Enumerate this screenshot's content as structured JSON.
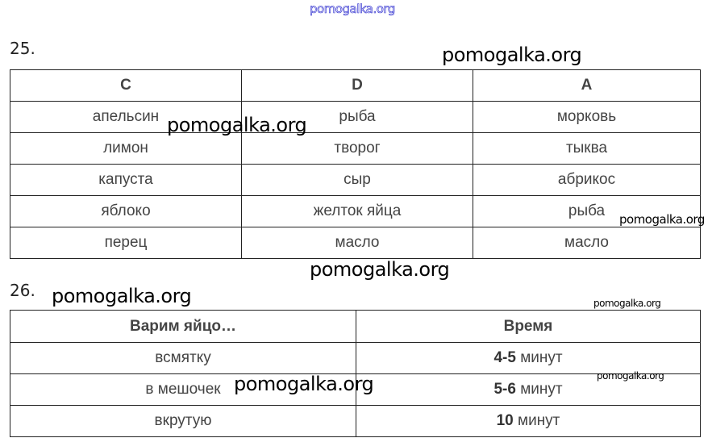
{
  "watermark": "pomogalka.org",
  "task25": {
    "number": "25.",
    "headers": [
      "C",
      "D",
      "A"
    ],
    "rows": [
      [
        "апельсин",
        "рыба",
        "морковь"
      ],
      [
        "лимон",
        "творог",
        "тыква"
      ],
      [
        "капуста",
        "сыр",
        "абрикос"
      ],
      [
        "яблоко",
        "желток яйца",
        "рыба"
      ],
      [
        "перец",
        "масло",
        "масло"
      ]
    ]
  },
  "task26": {
    "number": "26.",
    "headers": [
      "Варим яйцо…",
      "Время"
    ],
    "rows": [
      {
        "method": "всмятку",
        "time_num": "4-5",
        "time_unit": "минут"
      },
      {
        "method": "в мешочек",
        "time_num": "5-6",
        "time_unit": "минут"
      },
      {
        "method": "вкрутую",
        "time_num": "10",
        "time_unit": "минут"
      }
    ]
  }
}
